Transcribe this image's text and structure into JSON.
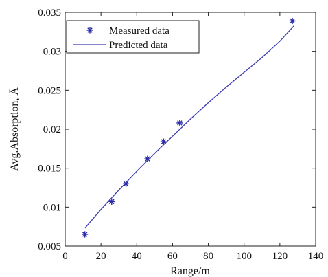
{
  "chart_data": {
    "type": "scatter",
    "xlabel": "Range/m",
    "ylabel": "Avg.Absorption, Ā",
    "xlim": [
      0,
      140
    ],
    "ylim": [
      0.005,
      0.035
    ],
    "xticks": [
      "0",
      "20",
      "40",
      "60",
      "80",
      "100",
      "120",
      "140"
    ],
    "yticks": [
      "0.005",
      "0.01",
      "0.015",
      "0.02",
      "0.025",
      "0.03",
      "0.035"
    ],
    "grid": false,
    "legend_position": "top-left",
    "series": [
      {
        "name": "Measured data",
        "kind": "markers",
        "marker": "star",
        "color": "#2a2aa8",
        "x": [
          11,
          26,
          34,
          46,
          55,
          64,
          127
        ],
        "y": [
          0.0065,
          0.0107,
          0.013,
          0.0162,
          0.0184,
          0.0208,
          0.0339
        ]
      },
      {
        "name": "Predicted data",
        "kind": "line",
        "color": "#3a3ab0",
        "x": [
          11,
          20,
          30,
          40,
          50,
          60,
          70,
          80,
          90,
          100,
          110,
          120,
          128
        ],
        "y": [
          0.0073,
          0.0097,
          0.0122,
          0.0146,
          0.0169,
          0.0191,
          0.0213,
          0.0234,
          0.0254,
          0.0273,
          0.0292,
          0.0313,
          0.0333
        ]
      }
    ]
  }
}
